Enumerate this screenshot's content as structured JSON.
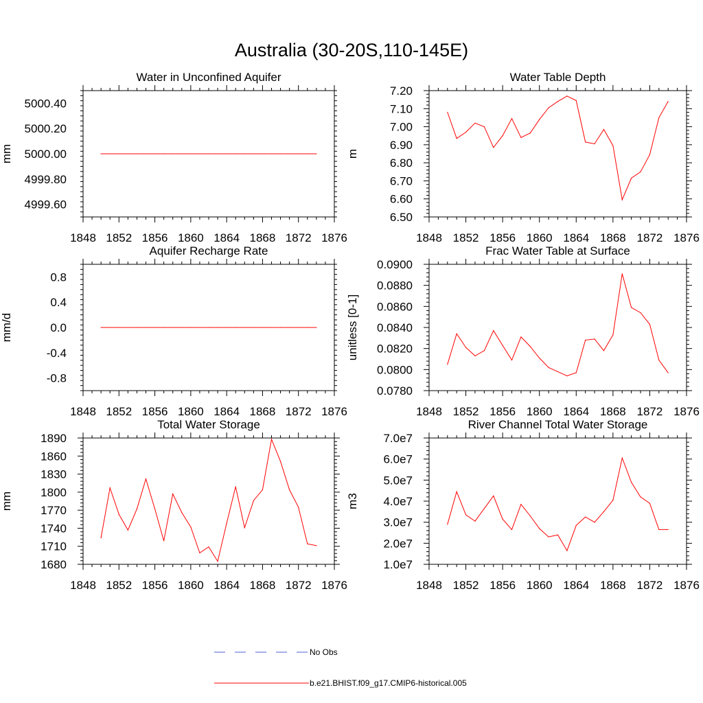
{
  "title": "Australia (30-20S,110-145E)",
  "colors": {
    "model": "#ff0000",
    "obs": "#4b5fd6",
    "axis": "#000000"
  },
  "legend": [
    {
      "label": "No Obs",
      "style": "dashed",
      "color": "#4b5fd6"
    },
    {
      "label": "b.e21.BHIST.f09_g17.CMIP6-historical.005",
      "style": "solid",
      "color": "#ff0000"
    }
  ],
  "chart_data": [
    {
      "type": "line",
      "title": "Water in Unconfined Aquifer",
      "ylabel": "mm",
      "xlim": [
        1848,
        1876
      ],
      "xticks": [
        1848,
        1852,
        1856,
        1860,
        1864,
        1868,
        1872,
        1876
      ],
      "ylim": [
        4999.5,
        5000.5
      ],
      "yticks": [
        4999.6,
        4999.8,
        5000.0,
        5000.2,
        5000.4
      ],
      "ytick_labels": [
        "4999.60",
        "4999.80",
        "5000.00",
        "5000.20",
        "5000.40"
      ],
      "x": [
        1850,
        1851,
        1852,
        1853,
        1854,
        1855,
        1856,
        1857,
        1858,
        1859,
        1860,
        1861,
        1862,
        1863,
        1864,
        1865,
        1866,
        1867,
        1868,
        1869,
        1870,
        1871,
        1872,
        1873,
        1874
      ],
      "series": [
        {
          "name": "b.e21.BHIST.f09_g17.CMIP6-historical.005",
          "values": [
            5000,
            5000,
            5000,
            5000,
            5000,
            5000,
            5000,
            5000,
            5000,
            5000,
            5000,
            5000,
            5000,
            5000,
            5000,
            5000,
            5000,
            5000,
            5000,
            5000,
            5000,
            5000,
            5000,
            5000,
            5000
          ]
        }
      ]
    },
    {
      "type": "line",
      "title": "Water Table Depth",
      "ylabel": "m",
      "xlim": [
        1848,
        1876
      ],
      "xticks": [
        1848,
        1852,
        1856,
        1860,
        1864,
        1868,
        1872,
        1876
      ],
      "ylim": [
        6.5,
        7.2
      ],
      "yticks": [
        6.5,
        6.6,
        6.7,
        6.8,
        6.9,
        7.0,
        7.1,
        7.2
      ],
      "ytick_labels": [
        "6.50",
        "6.60",
        "6.70",
        "6.80",
        "6.90",
        "7.00",
        "7.10",
        "7.20"
      ],
      "x": [
        1850,
        1851,
        1852,
        1853,
        1854,
        1855,
        1856,
        1857,
        1858,
        1859,
        1860,
        1861,
        1862,
        1863,
        1864,
        1865,
        1866,
        1867,
        1868,
        1869,
        1870,
        1871,
        1872,
        1873,
        1874
      ],
      "series": [
        {
          "name": "b.e21.BHIST.f09_g17.CMIP6-historical.005",
          "values": [
            7.08,
            6.935,
            6.97,
            7.02,
            7.0,
            6.885,
            6.95,
            7.045,
            6.94,
            6.965,
            7.04,
            7.105,
            7.14,
            7.17,
            7.145,
            6.915,
            6.905,
            6.985,
            6.895,
            6.595,
            6.715,
            6.75,
            6.845,
            7.05,
            7.14
          ]
        }
      ]
    },
    {
      "type": "line",
      "title": "Aquifer Recharge Rate",
      "ylabel": "mm/d",
      "xlim": [
        1848,
        1876
      ],
      "xticks": [
        1848,
        1852,
        1856,
        1860,
        1864,
        1868,
        1872,
        1876
      ],
      "ylim": [
        -1.0,
        1.0
      ],
      "yticks": [
        -0.8,
        -0.4,
        0.0,
        0.4,
        0.8
      ],
      "ytick_labels": [
        "-0.8",
        "-0.4",
        "0.0",
        "0.4",
        "0.8"
      ],
      "x": [
        1850,
        1851,
        1852,
        1853,
        1854,
        1855,
        1856,
        1857,
        1858,
        1859,
        1860,
        1861,
        1862,
        1863,
        1864,
        1865,
        1866,
        1867,
        1868,
        1869,
        1870,
        1871,
        1872,
        1873,
        1874
      ],
      "series": [
        {
          "name": "b.e21.BHIST.f09_g17.CMIP6-historical.005",
          "values": [
            0,
            0,
            0,
            0,
            0,
            0,
            0,
            0,
            0,
            0,
            0,
            0,
            0,
            0,
            0,
            0,
            0,
            0,
            0,
            0,
            0,
            0,
            0,
            0,
            0
          ]
        }
      ]
    },
    {
      "type": "line",
      "title": "Frac Water Table at Surface",
      "ylabel": "unitless [0-1]",
      "xlim": [
        1848,
        1876
      ],
      "xticks": [
        1848,
        1852,
        1856,
        1860,
        1864,
        1868,
        1872,
        1876
      ],
      "ylim": [
        0.078,
        0.09
      ],
      "yticks": [
        0.078,
        0.08,
        0.082,
        0.084,
        0.086,
        0.088,
        0.09
      ],
      "ytick_labels": [
        "0.0780",
        "0.0800",
        "0.0820",
        "0.0840",
        "0.0860",
        "0.0880",
        "0.0900"
      ],
      "x": [
        1850,
        1851,
        1852,
        1853,
        1854,
        1855,
        1856,
        1857,
        1858,
        1859,
        1860,
        1861,
        1862,
        1863,
        1864,
        1865,
        1866,
        1867,
        1868,
        1869,
        1870,
        1871,
        1872,
        1873,
        1874
      ],
      "series": [
        {
          "name": "b.e21.BHIST.f09_g17.CMIP6-historical.005",
          "values": [
            0.0805,
            0.0834,
            0.0821,
            0.0813,
            0.0818,
            0.0837,
            0.0823,
            0.0809,
            0.0831,
            0.0822,
            0.0811,
            0.0802,
            0.0798,
            0.0794,
            0.0797,
            0.0828,
            0.0829,
            0.0818,
            0.0833,
            0.0891,
            0.0859,
            0.0854,
            0.0843,
            0.0809,
            0.0797
          ]
        }
      ]
    },
    {
      "type": "line",
      "title": "Total Water Storage",
      "ylabel": "mm",
      "xlim": [
        1848,
        1876
      ],
      "xticks": [
        1848,
        1852,
        1856,
        1860,
        1864,
        1868,
        1872,
        1876
      ],
      "ylim": [
        1680,
        1890
      ],
      "yticks": [
        1680,
        1710,
        1740,
        1770,
        1800,
        1830,
        1860,
        1890
      ],
      "ytick_labels": [
        "1680",
        "1710",
        "1740",
        "1770",
        "1800",
        "1830",
        "1860",
        "1890"
      ],
      "x": [
        1850,
        1851,
        1852,
        1853,
        1854,
        1855,
        1856,
        1857,
        1858,
        1859,
        1860,
        1861,
        1862,
        1863,
        1864,
        1865,
        1866,
        1867,
        1868,
        1869,
        1870,
        1871,
        1872,
        1873,
        1874
      ],
      "series": [
        {
          "name": "b.e21.BHIST.f09_g17.CMIP6-historical.005",
          "values": [
            1724,
            1807,
            1763,
            1737,
            1772,
            1822,
            1772,
            1719,
            1797,
            1766,
            1742,
            1699,
            1709,
            1685,
            1748,
            1809,
            1741,
            1786,
            1804,
            1888,
            1851,
            1804,
            1775,
            1714,
            1711
          ]
        }
      ]
    },
    {
      "type": "line",
      "title": "River Channel Total Water Storage",
      "ylabel": "m3",
      "xlim": [
        1848,
        1876
      ],
      "xticks": [
        1848,
        1852,
        1856,
        1860,
        1864,
        1868,
        1872,
        1876
      ],
      "ylim": [
        10000000.0,
        70000000.0
      ],
      "yticks": [
        10000000.0,
        20000000.0,
        30000000.0,
        40000000.0,
        50000000.0,
        60000000.0,
        70000000.0
      ],
      "ytick_labels": [
        "1.0e7",
        "2.0e7",
        "3.0e7",
        "4.0e7",
        "5.0e7",
        "6.0e7",
        "7.0e7"
      ],
      "x": [
        1850,
        1851,
        1852,
        1853,
        1854,
        1855,
        1856,
        1857,
        1858,
        1859,
        1860,
        1861,
        1862,
        1863,
        1864,
        1865,
        1866,
        1867,
        1868,
        1869,
        1870,
        1871,
        1872,
        1873,
        1874
      ],
      "series": [
        {
          "name": "b.e21.BHIST.f09_g17.CMIP6-historical.005",
          "values": [
            29000000.0,
            44500000.0,
            33500000.0,
            30500000.0,
            36500000.0,
            42500000.0,
            31500000.0,
            26500000.0,
            38500000.0,
            33000000.0,
            27000000.0,
            23000000.0,
            24000000.0,
            16500000.0,
            28500000.0,
            32500000.0,
            30000000.0,
            35000000.0,
            40500000.0,
            60500000.0,
            49000000.0,
            42000000.0,
            39000000.0,
            26500000.0,
            26500000.0
          ]
        }
      ]
    }
  ]
}
